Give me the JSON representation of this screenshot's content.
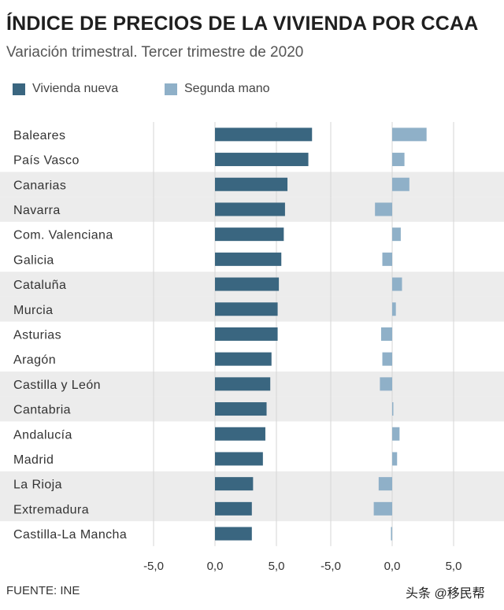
{
  "title": "ÍNDICE DE PRECIOS DE LA VIVIENDA POR CCAA",
  "subtitle": "Variación trimestral. Tercer trimestre de 2020",
  "legend": [
    {
      "label": "Vivienda nueva",
      "color": "#3a6680"
    },
    {
      "label": "Segunda mano",
      "color": "#8fb0c8"
    }
  ],
  "source": "FUENTE: INE",
  "watermark": "头条 @移民帮",
  "chart_data": {
    "type": "bar",
    "orientation": "horizontal",
    "categories": [
      "Baleares",
      "País Vasco",
      "Canarias",
      "Navarra",
      "Com. Valenciana",
      "Galicia",
      "Cataluña",
      "Murcia",
      "Asturias",
      "Aragón",
      "Castilla y León",
      "Cantabria",
      "Andalucía",
      "Madrid",
      "La Rioja",
      "Extremadura",
      "Castilla-La Mancha"
    ],
    "series": [
      {
        "name": "Vivienda nueva",
        "color": "#3a6680",
        "values": [
          7.9,
          7.6,
          5.9,
          5.7,
          5.6,
          5.4,
          5.2,
          5.1,
          5.1,
          4.6,
          4.5,
          4.2,
          4.1,
          3.9,
          3.1,
          3.0,
          3.0
        ],
        "xlim": [
          -6.0,
          8.5
        ],
        "ticks": [
          "-5,0",
          "0,0",
          "5,0"
        ],
        "tick_values": [
          -5,
          0,
          5
        ]
      },
      {
        "name": "Segunda mano",
        "color": "#8fb0c8",
        "values": [
          2.8,
          1.0,
          1.4,
          -1.4,
          0.7,
          -0.8,
          0.8,
          0.3,
          -0.9,
          -0.8,
          -1.0,
          0.05,
          0.6,
          0.4,
          -1.1,
          -1.5,
          -0.1
        ],
        "xlim": [
          -6.0,
          8.5
        ],
        "ticks": [
          "-5,0",
          "0,0",
          "5,0"
        ],
        "tick_values": [
          -5,
          0,
          5
        ]
      }
    ],
    "grid": true,
    "legend_position": "top-left"
  }
}
